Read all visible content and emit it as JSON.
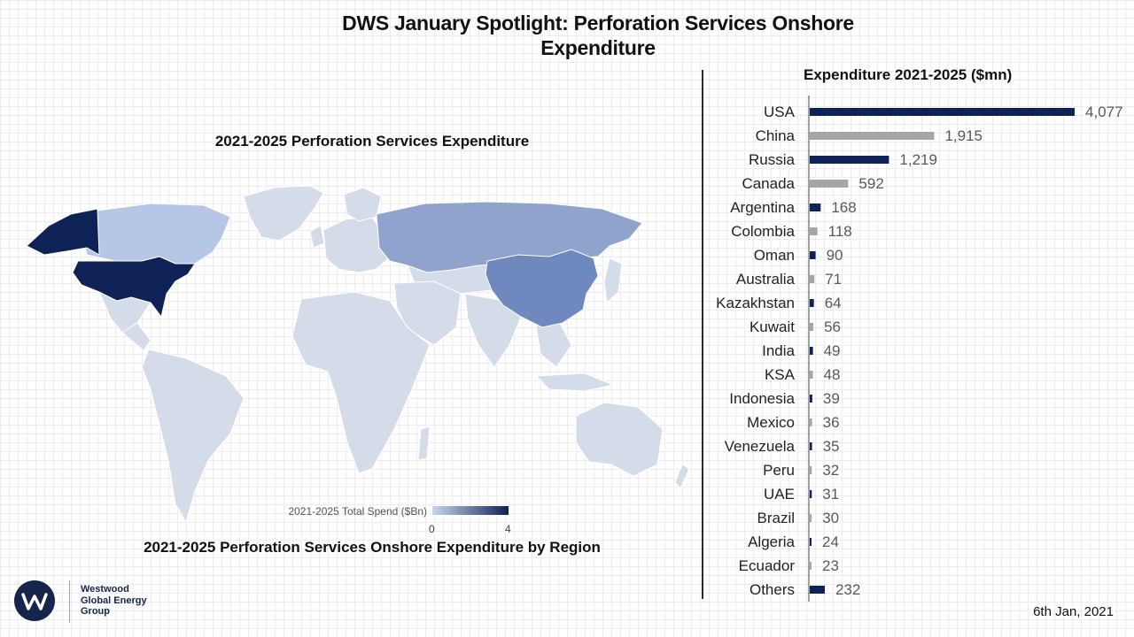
{
  "header": {
    "title_line1": "DWS January Spotlight: Perforation Services Onshore",
    "title_line2": "Expenditure"
  },
  "map": {
    "title": "2021-2025 Perforation Services Expenditure",
    "subtitle": "2021-2025 Perforation Services Onshore Expenditure by Region",
    "legend": {
      "label": "2021-2025 Total Spend ($Bn)",
      "min": "0",
      "max": "4"
    },
    "colors": {
      "usa": "#0f2255",
      "russia": "#8fa3cc",
      "china": "#6f88bd",
      "canada": "#b6c6e6",
      "base": "#d4dce9",
      "border": "#ffffff"
    }
  },
  "chart_data": {
    "type": "bar",
    "orientation": "horizontal",
    "title": "Expenditure 2021-2025 ($mn)",
    "categories": [
      "USA",
      "China",
      "Russia",
      "Canada",
      "Argentina",
      "Colombia",
      "Oman",
      "Australia",
      "Kazakhstan",
      "Kuwait",
      "India",
      "KSA",
      "Indonesia",
      "Mexico",
      "Venezuela",
      "Peru",
      "UAE",
      "Brazil",
      "Algeria",
      "Ecuador",
      "Others"
    ],
    "values": [
      4077,
      1915,
      1219,
      592,
      168,
      118,
      90,
      71,
      64,
      56,
      49,
      48,
      39,
      36,
      35,
      32,
      31,
      30,
      24,
      23,
      232
    ],
    "value_labels": [
      "4,077",
      "1,915",
      "1,219",
      "592",
      "168",
      "118",
      "90",
      "71",
      "64",
      "56",
      "49",
      "48",
      "39",
      "36",
      "35",
      "32",
      "31",
      "30",
      "24",
      "23",
      "232"
    ],
    "colors": [
      "#0f2255",
      "#a6a6a6"
    ],
    "xlim": [
      0,
      4077
    ],
    "grid": false
  },
  "footer": {
    "logo_lines": [
      "Westwood",
      "Global Energy",
      "Group"
    ],
    "date": "6th Jan, 2021"
  }
}
